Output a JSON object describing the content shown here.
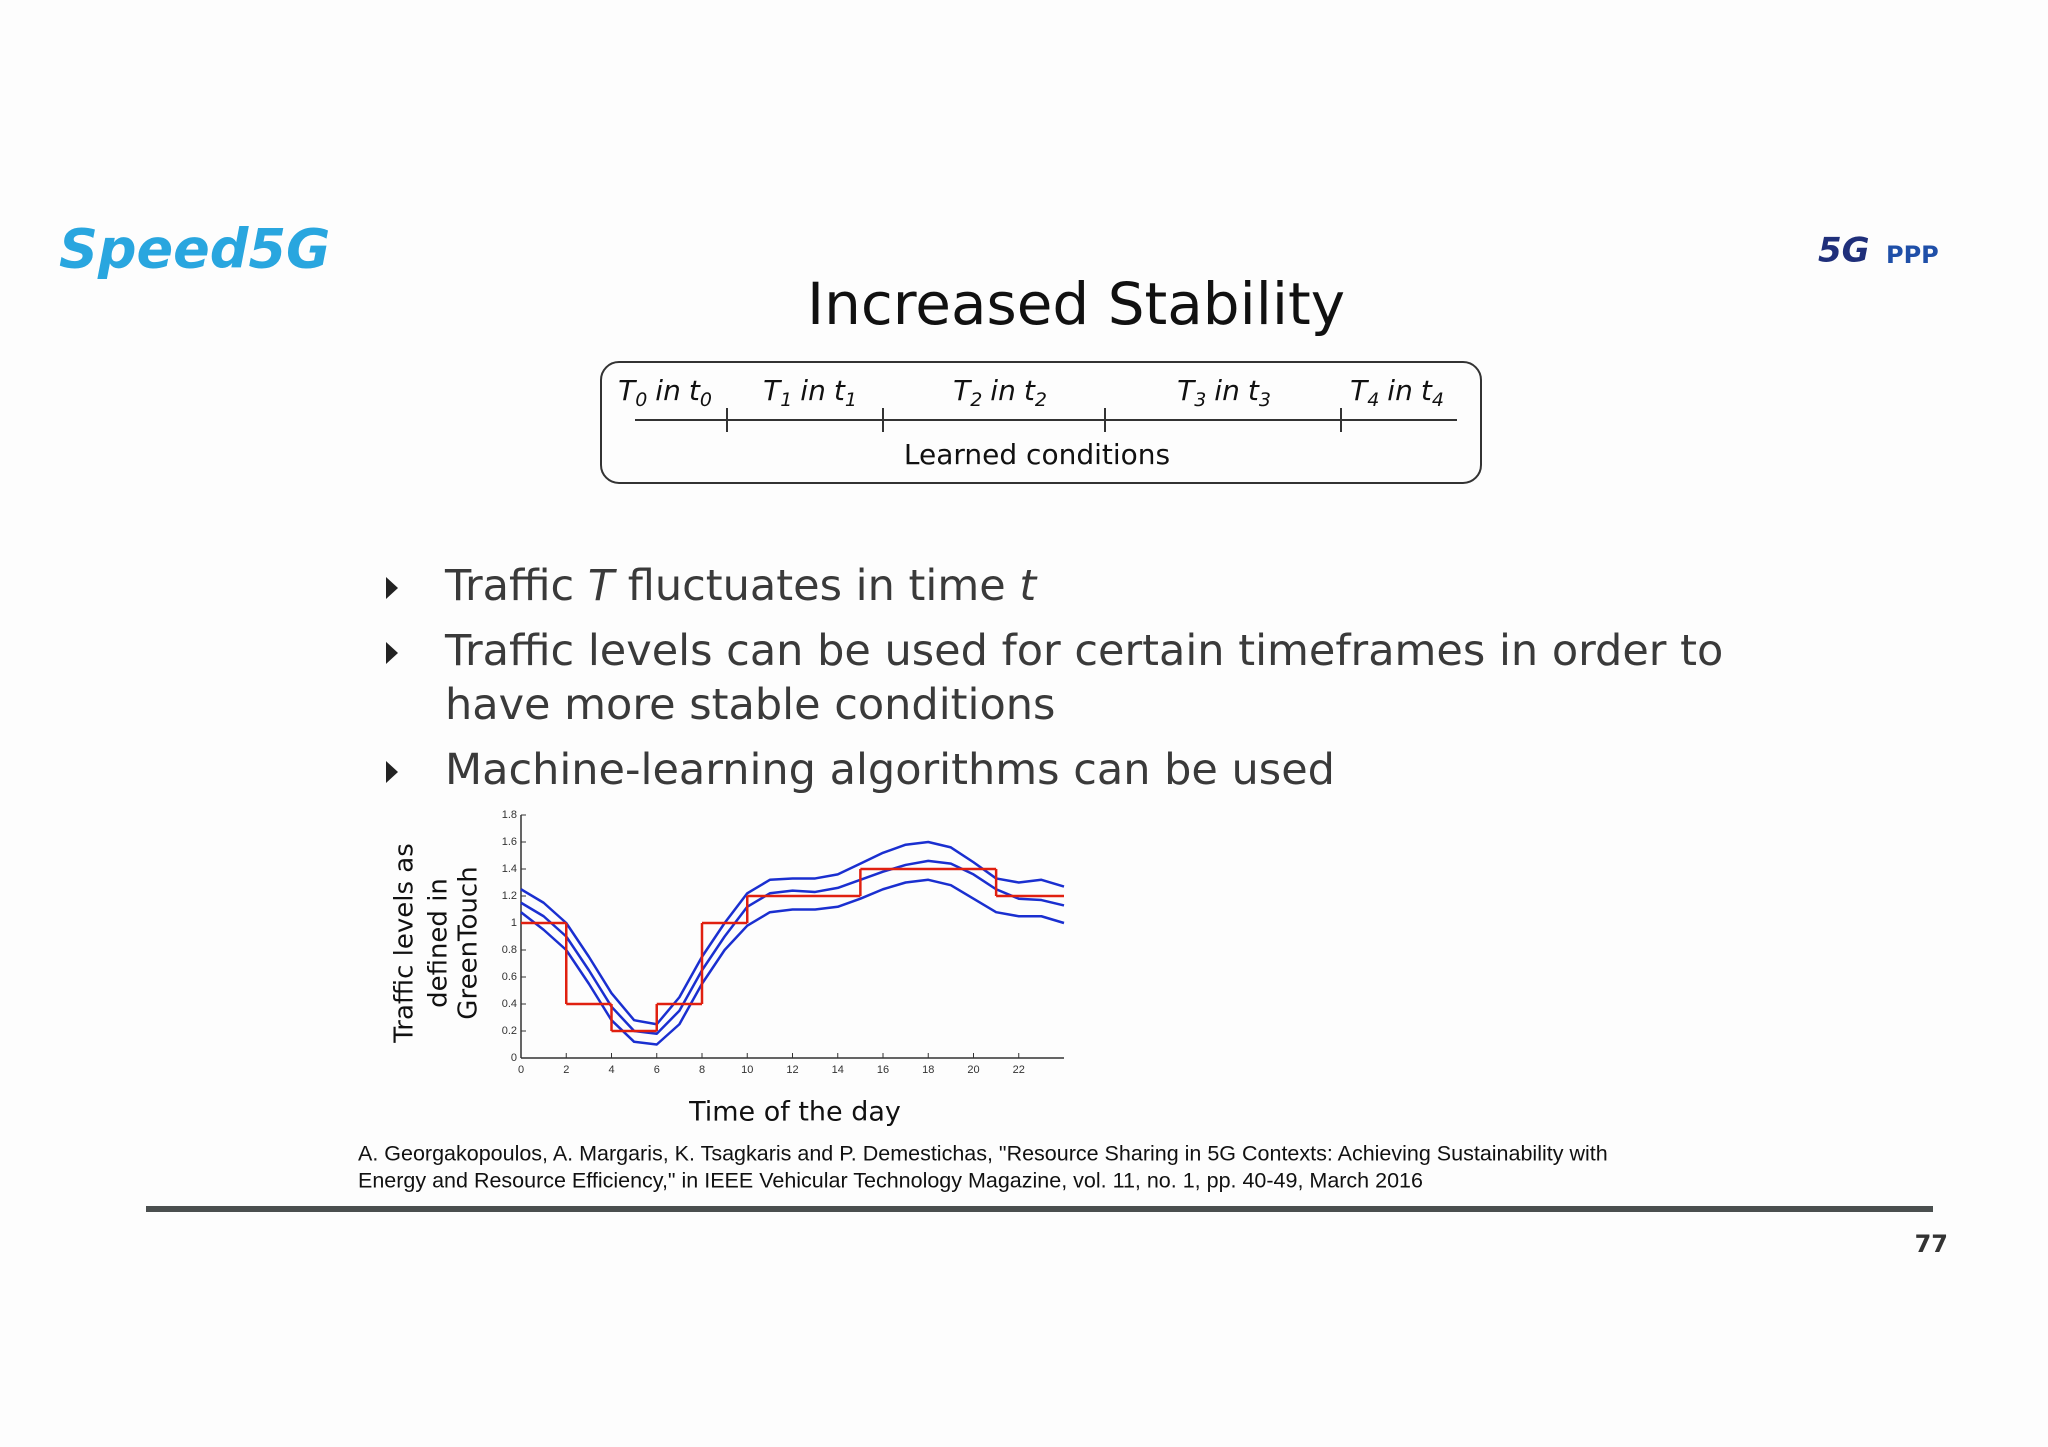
{
  "header": {
    "logo_left": "Speed5G",
    "logo_right_a": "5G",
    "logo_right_b": "PPP",
    "title": "Increased Stability"
  },
  "timeline": {
    "labels": [
      {
        "var1": "T",
        "sub1": "0",
        "mid": "in",
        "var2": "t",
        "sub2": "0"
      },
      {
        "var1": "T",
        "sub1": "1",
        "mid": "in",
        "var2": "t",
        "sub2": "1"
      },
      {
        "var1": "T",
        "sub1": "2",
        "mid": "in",
        "var2": "t",
        "sub2": "2"
      },
      {
        "var1": "T",
        "sub1": "3",
        "mid": "in",
        "var2": "t",
        "sub2": "3"
      },
      {
        "var1": "T",
        "sub1": "4",
        "mid": "in",
        "var2": "t",
        "sub2": "4"
      }
    ],
    "caption": "Learned conditions"
  },
  "bullets": [
    {
      "lines": [
        [
          {
            "text": "Traffic "
          },
          {
            "text": "T",
            "italic": true
          },
          {
            "text": " fluctuates in time "
          },
          {
            "text": "t",
            "italic": true
          }
        ]
      ]
    },
    {
      "lines": [
        [
          {
            "text": "Traffic levels can be used for certain timeframes in order to"
          }
        ],
        [
          {
            "text": "have more stable conditions"
          }
        ]
      ]
    },
    {
      "lines": [
        [
          {
            "text": "Machine-learning algorithms can be used"
          }
        ]
      ]
    }
  ],
  "chart": {
    "type": "line",
    "ylabel_lines": [
      "Traffic levels as",
      "defined in",
      "GreenTouch"
    ],
    "xlabel": "Time of the day",
    "xlim": [
      0,
      24
    ],
    "ylim": [
      0,
      1.8
    ],
    "xticks": [
      0,
      2,
      4,
      6,
      8,
      10,
      12,
      14,
      16,
      18,
      20,
      22
    ],
    "yticks": [
      0,
      0.2,
      0.4,
      0.6,
      0.8,
      1,
      1.2,
      1.4,
      1.6,
      1.8
    ],
    "x": [
      0,
      1,
      2,
      3,
      4,
      5,
      6,
      7,
      8,
      9,
      10,
      11,
      12,
      13,
      14,
      15,
      16,
      17,
      18,
      19,
      20,
      21,
      22,
      23,
      24
    ],
    "series": [
      {
        "color": "#1a2fd0",
        "values": [
          1.25,
          1.15,
          1.0,
          0.75,
          0.48,
          0.28,
          0.25,
          0.45,
          0.75,
          1.0,
          1.22,
          1.32,
          1.33,
          1.33,
          1.36,
          1.44,
          1.52,
          1.58,
          1.6,
          1.56,
          1.45,
          1.33,
          1.3,
          1.32,
          1.27
        ]
      },
      {
        "color": "#1a2fd0",
        "values": [
          1.15,
          1.05,
          0.9,
          0.65,
          0.38,
          0.2,
          0.18,
          0.35,
          0.65,
          0.9,
          1.12,
          1.22,
          1.24,
          1.23,
          1.26,
          1.32,
          1.38,
          1.43,
          1.46,
          1.44,
          1.36,
          1.25,
          1.18,
          1.17,
          1.13
        ]
      },
      {
        "color": "#1a2fd0",
        "values": [
          1.08,
          0.95,
          0.8,
          0.55,
          0.28,
          0.12,
          0.1,
          0.25,
          0.55,
          0.8,
          0.98,
          1.08,
          1.1,
          1.1,
          1.12,
          1.18,
          1.25,
          1.3,
          1.32,
          1.28,
          1.18,
          1.08,
          1.05,
          1.05,
          1.0
        ]
      }
    ],
    "steps": {
      "color": "#e02010",
      "bins": [
        0,
        2,
        4,
        6,
        8,
        10,
        15,
        21,
        24
      ],
      "values": [
        1,
        0.4,
        0.2,
        0.4,
        1,
        1.2,
        1.4,
        1.2
      ]
    }
  },
  "citation": [
    "A. Georgakopoulos, A. Margaris, K. Tsagkaris and P. Demestichas, \"Resource Sharing in 5G Contexts: Achieving Sustainability with",
    "Energy and Resource Efficiency,\" in IEEE Vehicular Technology Magazine, vol. 11, no. 1, pp. 40-49, March 2016"
  ],
  "page_number": "77"
}
